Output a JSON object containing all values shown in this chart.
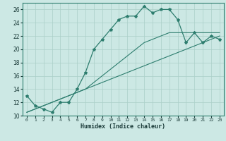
{
  "xlabel": "Humidex (Indice chaleur)",
  "x_values": [
    0,
    1,
    2,
    3,
    4,
    5,
    6,
    7,
    8,
    9,
    10,
    11,
    12,
    13,
    14,
    15,
    16,
    17,
    18,
    19,
    20,
    21,
    22,
    23
  ],
  "line1_y": [
    13,
    11.5,
    11,
    10.5,
    12,
    12,
    14,
    16.5,
    20,
    21.5,
    23,
    24.5,
    25,
    25,
    26.5,
    25.5,
    26,
    26,
    24.5,
    21,
    22.5,
    21,
    22,
    21.5
  ],
  "line2_y": [
    10.5,
    11,
    11.5,
    12,
    12.5,
    13,
    13.5,
    14,
    14.5,
    15,
    15.5,
    16,
    16.5,
    17,
    17.5,
    18,
    18.5,
    19,
    19.5,
    20,
    20.5,
    21,
    21.5,
    22
  ],
  "line3_y": [
    10.5,
    11,
    11.5,
    12,
    12.5,
    13,
    13.5,
    14,
    15,
    16,
    17,
    18,
    19,
    20,
    21,
    21.5,
    22,
    22.5,
    22.5,
    22.5,
    22.5,
    22.5,
    22.5,
    22.5
  ],
  "line_color": "#2d7d6e",
  "bg_color": "#cce8e4",
  "grid_color": "#aacfc8",
  "ylim": [
    10,
    27
  ],
  "yticks": [
    10,
    12,
    14,
    16,
    18,
    20,
    22,
    24,
    26
  ],
  "xlim": [
    -0.5,
    23.5
  ]
}
